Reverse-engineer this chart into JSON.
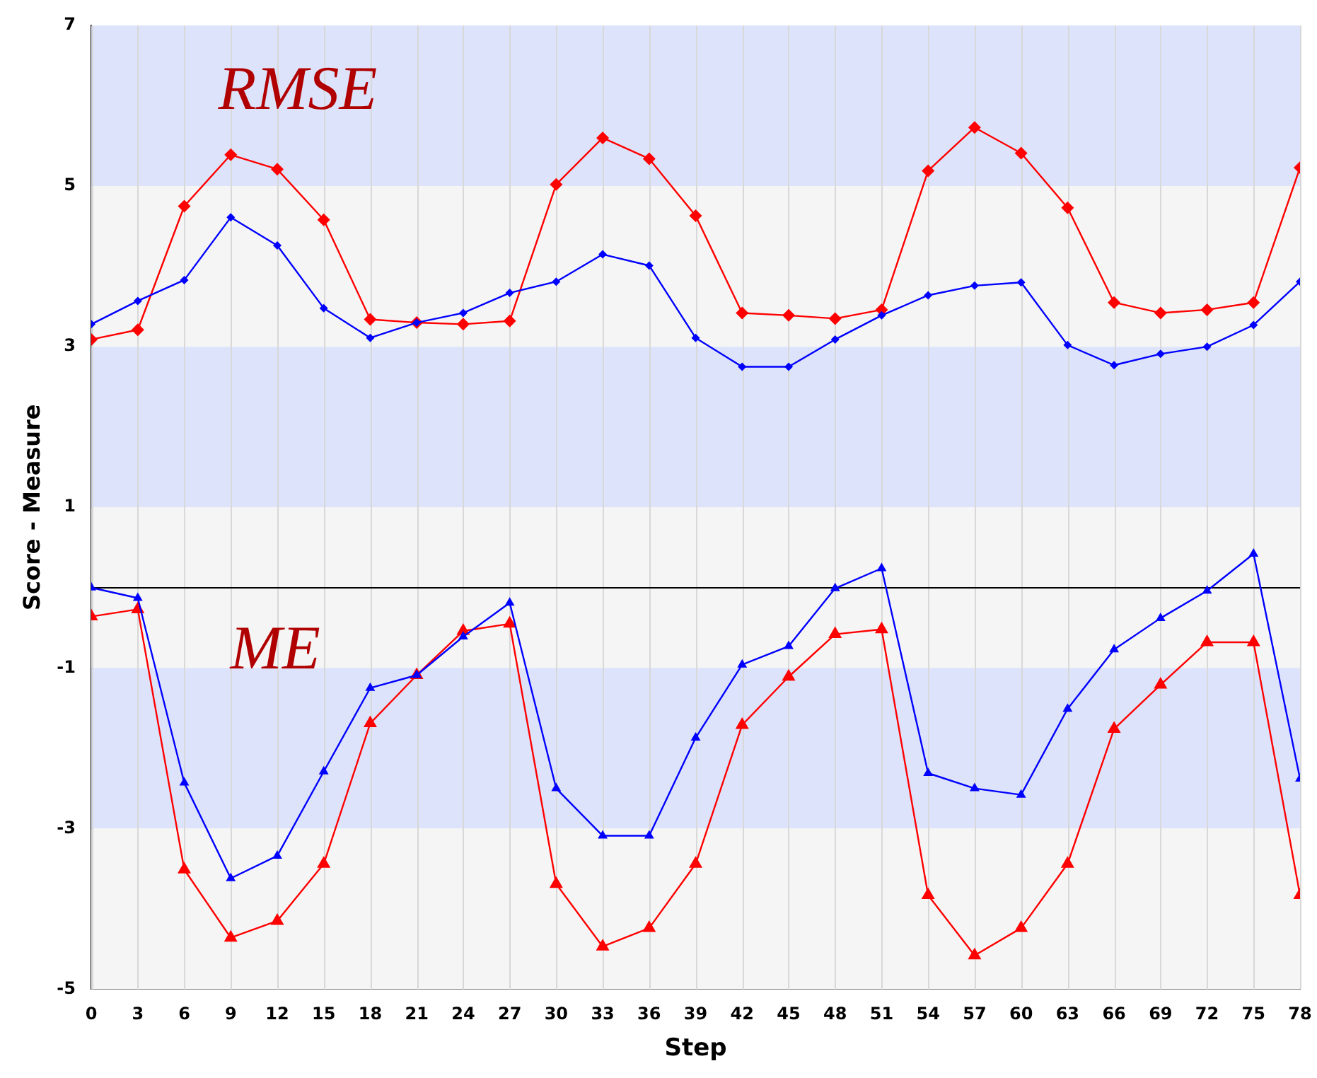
{
  "chart_data": {
    "type": "line",
    "xlabel": "Step",
    "ylabel": "Score - Measure",
    "x": [
      0,
      3,
      6,
      9,
      12,
      15,
      18,
      21,
      24,
      27,
      30,
      33,
      36,
      39,
      42,
      45,
      48,
      51,
      54,
      57,
      60,
      63,
      66,
      69,
      72,
      75,
      78
    ],
    "xlim": [
      0,
      78
    ],
    "xticks": [
      0,
      3,
      6,
      9,
      12,
      15,
      18,
      21,
      24,
      27,
      30,
      33,
      36,
      39,
      42,
      45,
      48,
      51,
      54,
      57,
      60,
      63,
      66,
      69,
      72,
      75,
      78
    ],
    "ylim": [
      -5,
      7
    ],
    "yticks": [
      -5,
      -3,
      -1,
      1,
      3,
      5,
      7
    ],
    "grid": "x",
    "legend": false,
    "line_style": "solid",
    "series": [
      {
        "color": "#0000ff",
        "marker": "diamond",
        "values": [
          3.28,
          3.57,
          3.83,
          4.61,
          4.26,
          3.48,
          3.11,
          3.3,
          3.42,
          3.67,
          3.81,
          4.15,
          4.01,
          3.11,
          2.75,
          2.75,
          3.09,
          3.39,
          3.64,
          3.76,
          3.8,
          3.02,
          2.77,
          2.91,
          3.0,
          3.27,
          3.81
        ]
      },
      {
        "color": "#ff0000",
        "marker": "diamond",
        "values": [
          3.09,
          3.21,
          4.75,
          5.39,
          5.21,
          4.58,
          3.34,
          3.3,
          3.28,
          3.32,
          5.02,
          5.6,
          5.34,
          4.63,
          3.42,
          3.39,
          3.35,
          3.46,
          5.19,
          5.73,
          5.41,
          4.73,
          3.55,
          3.42,
          3.46,
          3.55,
          5.23
        ]
      },
      {
        "color": "#0000ff",
        "marker": "triangle",
        "values": [
          0.0,
          -0.13,
          -2.43,
          -3.62,
          -3.34,
          -2.29,
          -1.25,
          -1.09,
          -0.61,
          -0.19,
          -2.5,
          -3.09,
          -3.09,
          -1.87,
          -0.96,
          -0.73,
          -0.01,
          0.24,
          -2.31,
          -2.5,
          -2.58,
          -1.51,
          -0.77,
          -0.38,
          -0.04,
          0.42,
          -2.38
        ]
      },
      {
        "color": "#ff0000",
        "marker": "triangle",
        "values": [
          -0.36,
          -0.27,
          -3.51,
          -4.36,
          -4.15,
          -3.44,
          -1.69,
          -1.09,
          -0.54,
          -0.45,
          -3.69,
          -4.47,
          -4.24,
          -3.44,
          -1.71,
          -1.11,
          -0.58,
          -0.52,
          -3.83,
          -4.58,
          -4.24,
          -3.44,
          -1.76,
          -1.21,
          -0.68,
          -0.68,
          -3.83
        ]
      }
    ],
    "bands": [
      {
        "axis": "y",
        "from": 5,
        "to": 7,
        "color": "#dde3fb"
      },
      {
        "axis": "y",
        "from": 3,
        "to": 5,
        "color": "#f5f5f5"
      },
      {
        "axis": "y",
        "from": 1,
        "to": 3,
        "color": "#dde3fb"
      },
      {
        "axis": "y",
        "from": -1,
        "to": 1,
        "color": "#f5f5f5"
      },
      {
        "axis": "y",
        "from": -3,
        "to": -1,
        "color": "#dde3fb"
      },
      {
        "axis": "y",
        "from": -5,
        "to": -3,
        "color": "#f5f5f5"
      }
    ],
    "ref_lines": [
      {
        "axis": "y",
        "value": 0,
        "color": "#000000"
      }
    ],
    "annotations": [
      "RMSE",
      "ME"
    ]
  }
}
